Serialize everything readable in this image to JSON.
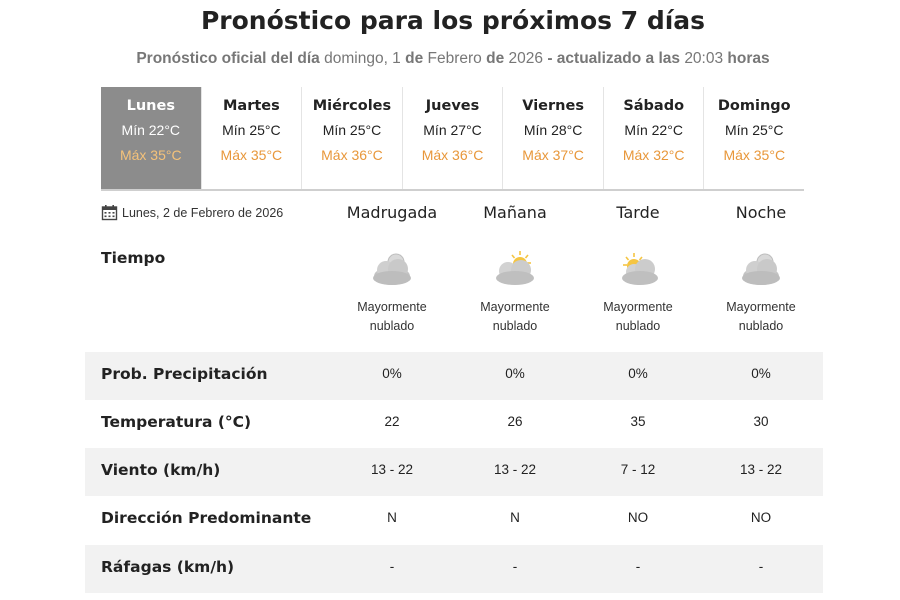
{
  "header": {
    "title": "Pronóstico para los próximos 7 días",
    "subtitle_prefix": "Pronóstico oficial del día",
    "subtitle_date_day": "domingo, 1",
    "subtitle_de1": "de",
    "subtitle_date_month": "Febrero",
    "subtitle_de2": "de",
    "subtitle_year": "2026",
    "subtitle_updated": "- actualizado a las",
    "subtitle_time": "20:03",
    "subtitle_horas": "horas"
  },
  "days": [
    {
      "name": "Lunes",
      "min": "Mín 22°C",
      "max": "Máx 35°C",
      "active": true
    },
    {
      "name": "Martes",
      "min": "Mín 25°C",
      "max": "Máx 35°C",
      "active": false
    },
    {
      "name": "Miércoles",
      "min": "Mín 25°C",
      "max": "Máx 36°C",
      "active": false
    },
    {
      "name": "Jueves",
      "min": "Mín 27°C",
      "max": "Máx 36°C",
      "active": false
    },
    {
      "name": "Viernes",
      "min": "Mín 28°C",
      "max": "Máx 37°C",
      "active": false
    },
    {
      "name": "Sábado",
      "min": "Mín 22°C",
      "max": "Máx 32°C",
      "active": false
    },
    {
      "name": "Domingo",
      "min": "Mín 25°C",
      "max": "Máx 35°C",
      "active": false
    }
  ],
  "detail": {
    "date": "Lunes, 2 de Febrero de 2026",
    "date_icon": "calendar-icon",
    "periods": [
      "Madrugada",
      "Mañana",
      "Tarde",
      "Noche"
    ],
    "tiempo_label": "Tiempo",
    "weather": [
      {
        "icon": "cloud-moon-icon",
        "desc_line1": "Mayormente",
        "desc_line2": "nublado"
      },
      {
        "icon": "cloud-sun-icon",
        "desc_line1": "Mayormente",
        "desc_line2": "nublado"
      },
      {
        "icon": "cloud-sun-icon",
        "desc_line1": "Mayormente",
        "desc_line2": "nublado"
      },
      {
        "icon": "cloud-moon-icon",
        "desc_line1": "Mayormente",
        "desc_line2": "nublado"
      }
    ],
    "rows": [
      {
        "label": "Prob. Precipitación",
        "values": [
          "0%",
          "0%",
          "0%",
          "0%"
        ],
        "shaded": true
      },
      {
        "label": "Temperatura (°C)",
        "values": [
          "22",
          "26",
          "35",
          "30"
        ],
        "shaded": false
      },
      {
        "label": "Viento (km/h)",
        "values": [
          "13 - 22",
          "13 - 22",
          "7 - 12",
          "13 - 22"
        ],
        "shaded": true
      },
      {
        "label": "Dirección Predominante",
        "values": [
          "N",
          "N",
          "NO",
          "NO"
        ],
        "shaded": false
      },
      {
        "label": "Ráfagas (km/h)",
        "values": [
          "-",
          "-",
          "-",
          "-"
        ],
        "shaded": true
      }
    ]
  },
  "colors": {
    "active_day_bg": "#8c8c8c",
    "max_temp": "#e8973a",
    "row_shade": "#f2f2f2",
    "sun": "#f5c542",
    "cloud": "#c9c9c9"
  }
}
